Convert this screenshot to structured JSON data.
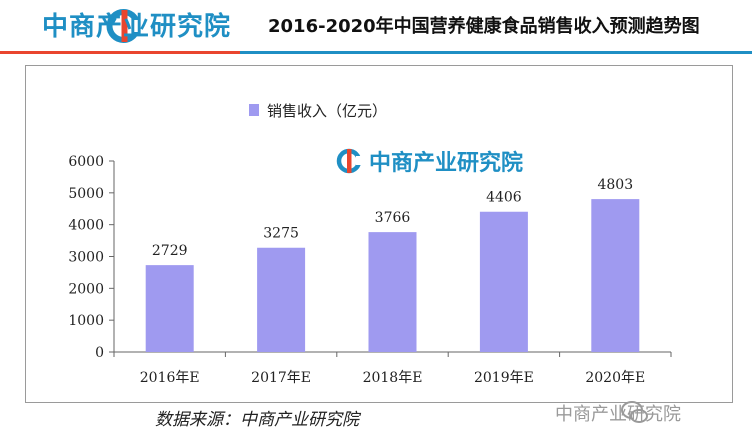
{
  "header": {
    "brand": "中商产业研究院",
    "title": "2016-2020年中国营养健康食品销售收入预测趋势图"
  },
  "watermark": {
    "text": "中商产业研究院"
  },
  "footer": {
    "source": "数据来源：中商产业研究院",
    "wechat": "中商产业研究院"
  },
  "colors": {
    "bar": "#9f9af0",
    "brand_blue": "#1f8fc4",
    "brand_red": "#e9452e"
  },
  "chart_data": {
    "type": "bar",
    "title": "",
    "xlabel": "",
    "ylabel": "",
    "categories": [
      "2016年E",
      "2017年E",
      "2018年E",
      "2019年E",
      "2020年E"
    ],
    "series": [
      {
        "name": "销售收入（亿元）",
        "values": [
          2729,
          3275,
          3766,
          4406,
          4803
        ]
      }
    ],
    "ylim": [
      0,
      6000
    ],
    "yticks": [
      0,
      1000,
      2000,
      3000,
      4000,
      5000,
      6000
    ],
    "grid": false,
    "legend": "top-left"
  }
}
